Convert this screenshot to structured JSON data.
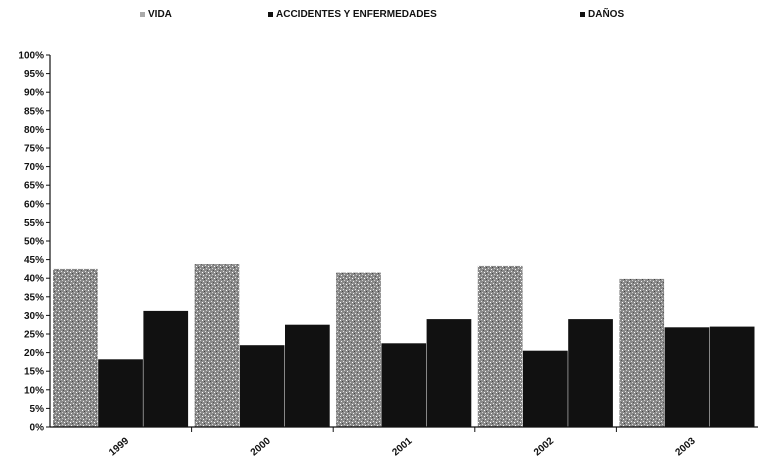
{
  "chart_data": {
    "type": "bar",
    "stacked": false,
    "categories": [
      "1999",
      "2000",
      "2001",
      "2002",
      "2003"
    ],
    "series": [
      {
        "name": "VIDA",
        "values": [
          42.5,
          43.8,
          41.5,
          43.3,
          39.8
        ],
        "color": "#9a9a9a",
        "pattern": "speckled"
      },
      {
        "name": "ACCIDENTES Y ENFERMEDADES",
        "values": [
          18.2,
          22.0,
          22.5,
          20.5,
          26.8
        ],
        "color": "#111111"
      },
      {
        "name": "DAÑOS",
        "values": [
          31.2,
          27.5,
          29.0,
          29.0,
          27.0
        ],
        "color": "#111111"
      }
    ],
    "y_ticks": [
      "0%",
      "5%",
      "10%",
      "15%",
      "20%",
      "25%",
      "30%",
      "35%",
      "40%",
      "45%",
      "50%",
      "55%",
      "60%",
      "65%",
      "70%",
      "75%",
      "80%",
      "85%",
      "90%",
      "95%",
      "100%"
    ],
    "ylim": [
      0,
      100
    ],
    "grid": false,
    "legend_position": "top"
  }
}
